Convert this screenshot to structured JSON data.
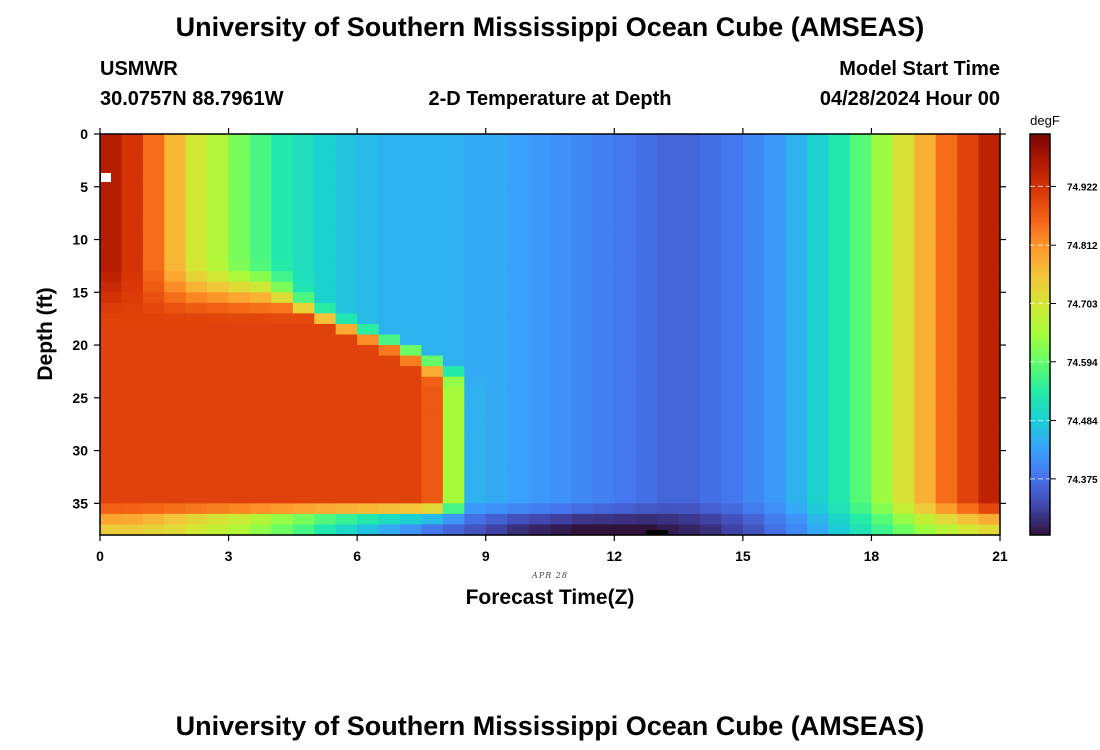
{
  "header": {
    "title": "University of Southern Mississippi Ocean Cube (AMSEAS)",
    "station": "USMWR",
    "coords": "30.0757N  88.7961W",
    "plot_title": "2-D Temperature at Depth",
    "start_label": "Model Start Time",
    "start_value": "04/28/2024 Hour 00"
  },
  "footer": {
    "title": "University of Southern Mississippi Ocean Cube (AMSEAS)"
  },
  "chart_data": {
    "type": "heatmap",
    "title": "2-D Temperature at Depth",
    "xlabel": "Forecast Time(Z)",
    "ylabel": "Depth (ft)",
    "date_label": "APR 28",
    "xlim": [
      0,
      21
    ],
    "ylim": [
      38,
      0
    ],
    "x_ticks": [
      0,
      3,
      6,
      9,
      12,
      15,
      18,
      21
    ],
    "y_ticks": [
      0,
      5,
      10,
      15,
      20,
      25,
      30,
      35
    ],
    "units": "degF",
    "colorbar_ticks": [
      "74.922",
      "74.812",
      "74.703",
      "74.594",
      "74.484",
      "74.375"
    ],
    "colorbar_range": [
      74.27,
      75.02
    ],
    "colorbar_tick_values": [
      74.922,
      74.812,
      74.703,
      74.594,
      74.484,
      74.375
    ],
    "colormap": [
      "#30123b",
      "#4145ab",
      "#4675ed",
      "#39a2fc",
      "#1bcfd4",
      "#24eca6",
      "#61fc6c",
      "#a4fc3b",
      "#d1e834",
      "#f3c63a",
      "#fe9b2d",
      "#f36315",
      "#d93806",
      "#b11901",
      "#7a0402"
    ],
    "time_columns": [
      0,
      0.5,
      1,
      1.5,
      2,
      2.5,
      3,
      3.5,
      4,
      4.5,
      5,
      5.5,
      6,
      6.5,
      7,
      7.5,
      8,
      8.5,
      9,
      9.5,
      10,
      10.5,
      11,
      11.5,
      12,
      12.5,
      13,
      13.5,
      14,
      14.5,
      15,
      15.5,
      16,
      16.5,
      17,
      17.5,
      18,
      18.5,
      19,
      19.5,
      20,
      20.5
    ],
    "surface_temperature_degF": [
      74.96,
      74.92,
      74.85,
      74.77,
      74.7,
      74.66,
      74.61,
      74.57,
      74.53,
      74.51,
      74.49,
      74.47,
      74.46,
      74.45,
      74.45,
      74.45,
      74.45,
      74.44,
      74.44,
      74.43,
      74.42,
      74.41,
      74.4,
      74.39,
      74.38,
      74.37,
      74.36,
      74.36,
      74.37,
      74.38,
      74.4,
      74.42,
      74.45,
      74.49,
      74.53,
      74.58,
      74.64,
      74.71,
      74.78,
      74.85,
      74.9,
      74.95
    ],
    "bottom_layer_temperature_degF": [
      74.74,
      74.74,
      74.73,
      74.72,
      74.7,
      74.68,
      74.66,
      74.63,
      74.6,
      74.57,
      74.53,
      74.5,
      74.47,
      74.44,
      74.41,
      74.38,
      74.36,
      74.34,
      74.32,
      74.3,
      74.29,
      74.28,
      74.27,
      74.27,
      74.27,
      74.27,
      74.28,
      74.29,
      74.3,
      74.32,
      74.34,
      74.37,
      74.4,
      74.44,
      74.48,
      74.52,
      74.56,
      74.6,
      74.64,
      74.67,
      74.7,
      74.72
    ],
    "warm_core": {
      "depth_ft": [
        17,
        35
      ],
      "temperature_degF": 74.9,
      "ends_forecast_hour": [
        6.5,
        8.2
      ]
    }
  }
}
